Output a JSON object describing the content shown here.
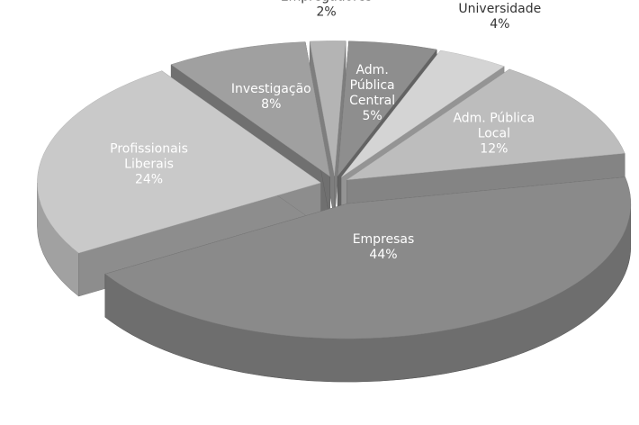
{
  "chart_data": {
    "type": "pie",
    "categories": [
      "Outros\nEmpregadores",
      "Adm.\nPública\nCentral",
      "Universidade",
      "Adm. Pública\nLocal",
      "Empresas",
      "Profissionais\nLiberais",
      "Investigação"
    ],
    "values": [
      2,
      5,
      4,
      12,
      44,
      24,
      8
    ],
    "value_labels": [
      "2%",
      "5%",
      "4%",
      "12%",
      "44%",
      "24%",
      "8%"
    ],
    "colors": [
      "#b4b4b4",
      "#8e8e8e",
      "#d4d4d4",
      "#bdbdbd",
      "#8a8a8a",
      "#c9c9c9",
      "#a0a0a0"
    ]
  }
}
